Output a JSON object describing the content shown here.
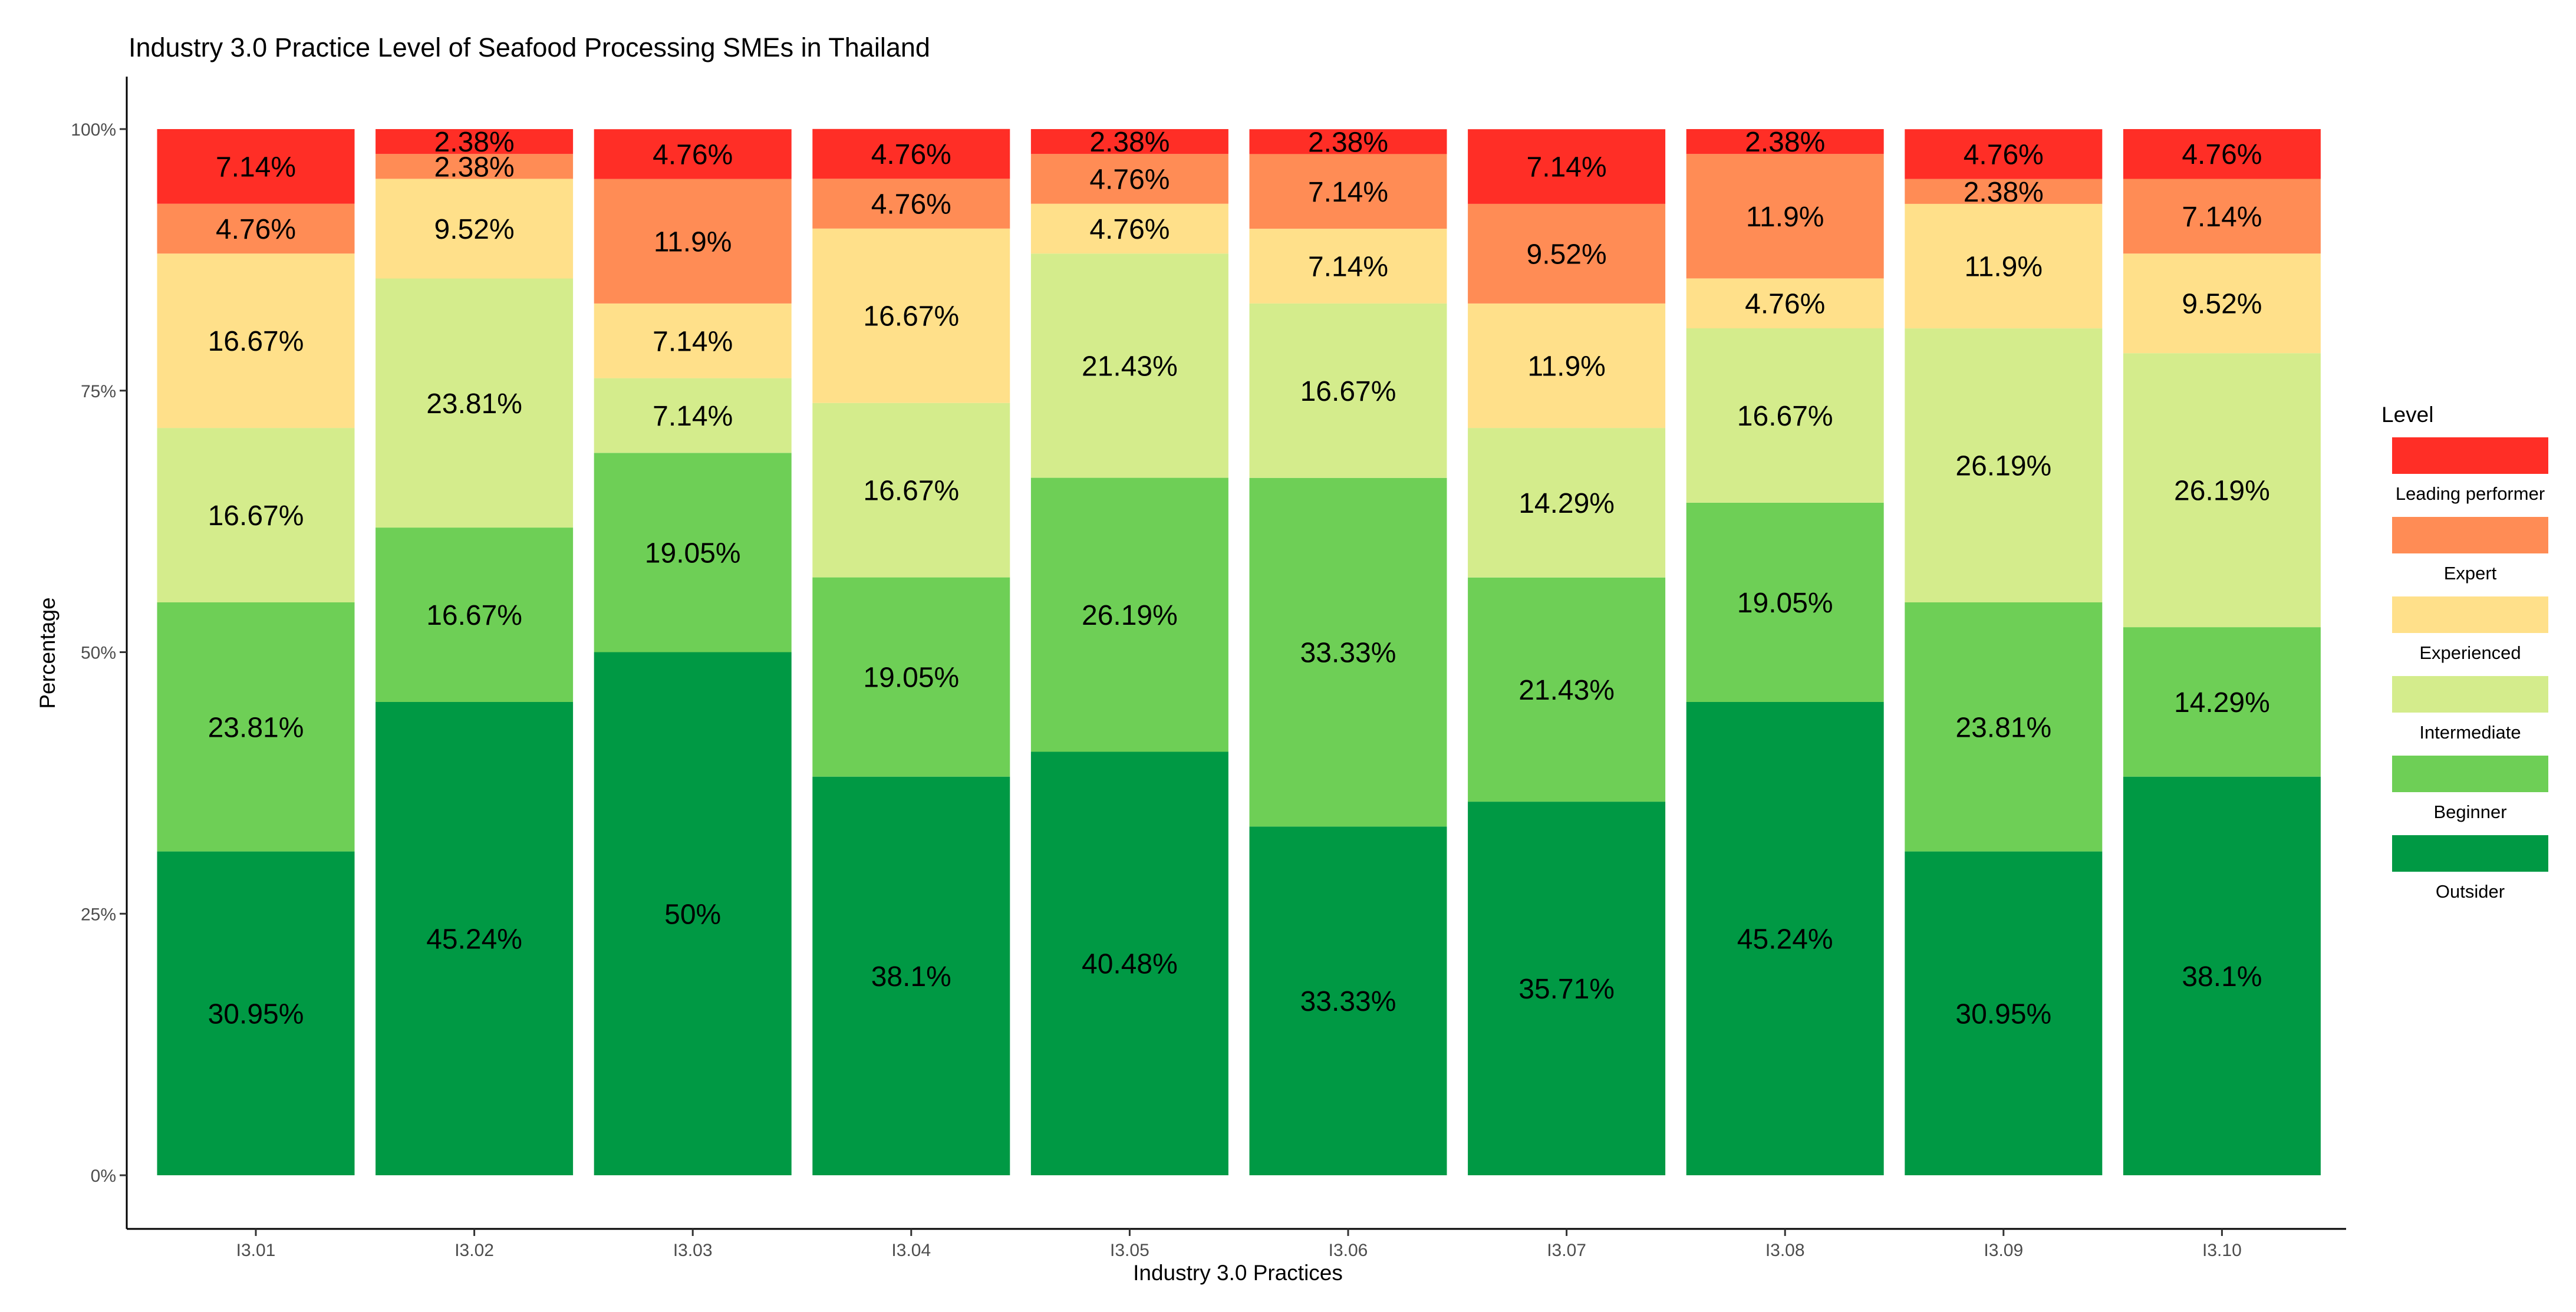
{
  "chart_data": {
    "type": "bar",
    "stacked": true,
    "title": "Industry 3.0 Practice Level of Seafood Processing SMEs in Thailand",
    "xlabel": "Industry 3.0 Practices",
    "ylabel": "Percentage",
    "ylim": [
      0,
      100
    ],
    "y_ticks": [
      "0%",
      "25%",
      "50%",
      "75%",
      "100%"
    ],
    "categories": [
      "I3.01",
      "I3.02",
      "I3.03",
      "I3.04",
      "I3.05",
      "I3.06",
      "I3.07",
      "I3.08",
      "I3.09",
      "I3.10"
    ],
    "legend_title": "Level",
    "legend_position": "right",
    "series": [
      {
        "name": "Outsider",
        "color": "#009944",
        "values": [
          30.95,
          45.24,
          50,
          38.1,
          40.48,
          33.33,
          35.71,
          45.24,
          30.95,
          38.1
        ],
        "labels": [
          "30.95%",
          "45.24%",
          "50%",
          "38.1%",
          "40.48%",
          "33.33%",
          "35.71%",
          "45.24%",
          "30.95%",
          "38.1%"
        ]
      },
      {
        "name": "Beginner",
        "color": "#6ECF56",
        "values": [
          23.81,
          16.67,
          19.05,
          19.05,
          26.19,
          33.33,
          21.43,
          19.05,
          23.81,
          14.29
        ],
        "labels": [
          "23.81%",
          "16.67%",
          "19.05%",
          "19.05%",
          "26.19%",
          "33.33%",
          "21.43%",
          "19.05%",
          "23.81%",
          "14.29%"
        ]
      },
      {
        "name": "Intermediate",
        "color": "#D4EC8C",
        "values": [
          16.67,
          23.81,
          7.14,
          16.67,
          21.43,
          16.67,
          14.29,
          16.67,
          26.19,
          26.19
        ],
        "labels": [
          "16.67%",
          "23.81%",
          "7.14%",
          "16.67%",
          "21.43%",
          "16.67%",
          "14.29%",
          "16.67%",
          "26.19%",
          "26.19%"
        ]
      },
      {
        "name": "Experienced",
        "color": "#FFE08A",
        "values": [
          16.67,
          9.52,
          7.14,
          16.67,
          4.76,
          7.14,
          11.9,
          4.76,
          11.9,
          9.52
        ],
        "labels": [
          "16.67%",
          "9.52%",
          "7.14%",
          "16.67%",
          "4.76%",
          "7.14%",
          "11.9%",
          "4.76%",
          "11.9%",
          "9.52%"
        ]
      },
      {
        "name": "Expert",
        "color": "#FF8C55",
        "values": [
          4.76,
          2.38,
          11.9,
          4.76,
          4.76,
          7.14,
          9.52,
          11.9,
          2.38,
          7.14
        ],
        "labels": [
          "4.76%",
          "2.38%",
          "11.9%",
          "4.76%",
          "4.76%",
          "7.14%",
          "9.52%",
          "11.9%",
          "2.38%",
          "7.14%"
        ]
      },
      {
        "name": "Leading performer",
        "color": "#FF2E26",
        "values": [
          7.14,
          2.38,
          4.76,
          4.76,
          2.38,
          2.38,
          7.14,
          2.38,
          4.76,
          4.76
        ],
        "labels": [
          "7.14%",
          "2.38%",
          "4.76%",
          "4.76%",
          "2.38%",
          "2.38%",
          "7.14%",
          "2.38%",
          "4.76%",
          "4.76%"
        ]
      }
    ]
  }
}
